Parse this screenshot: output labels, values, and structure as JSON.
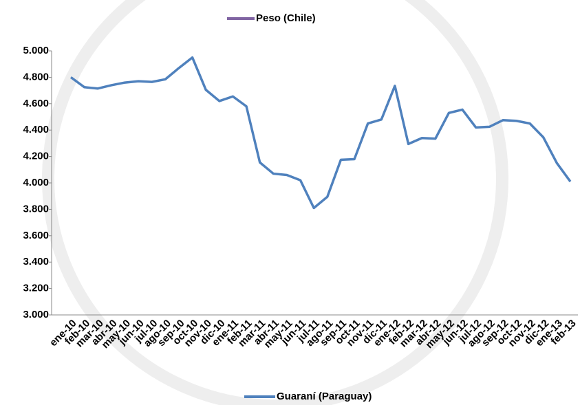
{
  "chart_data": {
    "type": "line",
    "categories": [
      "ene-10",
      "feb-10",
      "mar-10",
      "abr-10",
      "may-10",
      "jun-10",
      "jul-10",
      "ago-10",
      "sep-10",
      "oct-10",
      "nov-10",
      "dic-10",
      "ene-11",
      "feb-11",
      "mar-11",
      "abr-11",
      "may-11",
      "jun-11",
      "jul-11",
      "ago-11",
      "sep-11",
      "oct-11",
      "nov-11",
      "dic-11",
      "ene-12",
      "feb-12",
      "mar-12",
      "abr-12",
      "may-12",
      "jun-12",
      "jul-12",
      "ago-12",
      "sep-12",
      "oct-12",
      "nov-12",
      "dic-12",
      "ene-13",
      "feb-13"
    ],
    "top_legend": {
      "name": "Peso (Chile)",
      "color": "#8064a2"
    },
    "series": [
      {
        "name": "Guaraní (Paraguay)",
        "color": "#4f81bd",
        "values": [
          4800,
          4725,
          4715,
          4740,
          4760,
          4770,
          4765,
          4785,
          4870,
          4950,
          4705,
          4620,
          4655,
          4580,
          4155,
          4070,
          4060,
          4020,
          3810,
          3895,
          4175,
          4180,
          4450,
          4480,
          4735,
          4295,
          4340,
          4335,
          4530,
          4555,
          4420,
          4425,
          4475,
          4470,
          4450,
          4345,
          4150,
          4010
        ]
      }
    ],
    "ylim": [
      3000,
      5000
    ],
    "yticks": [
      {
        "value": 3000,
        "label": "3.000"
      },
      {
        "value": 3200,
        "label": "3.200"
      },
      {
        "value": 3400,
        "label": "3.400"
      },
      {
        "value": 3600,
        "label": "3.600"
      },
      {
        "value": 3800,
        "label": "3.800"
      },
      {
        "value": 4000,
        "label": "4.000"
      },
      {
        "value": 4200,
        "label": "4.200"
      },
      {
        "value": 4400,
        "label": "4.400"
      },
      {
        "value": 4600,
        "label": "4.600"
      },
      {
        "value": 4800,
        "label": "4.800"
      },
      {
        "value": 5000,
        "label": "5.000"
      }
    ],
    "grid": false
  }
}
